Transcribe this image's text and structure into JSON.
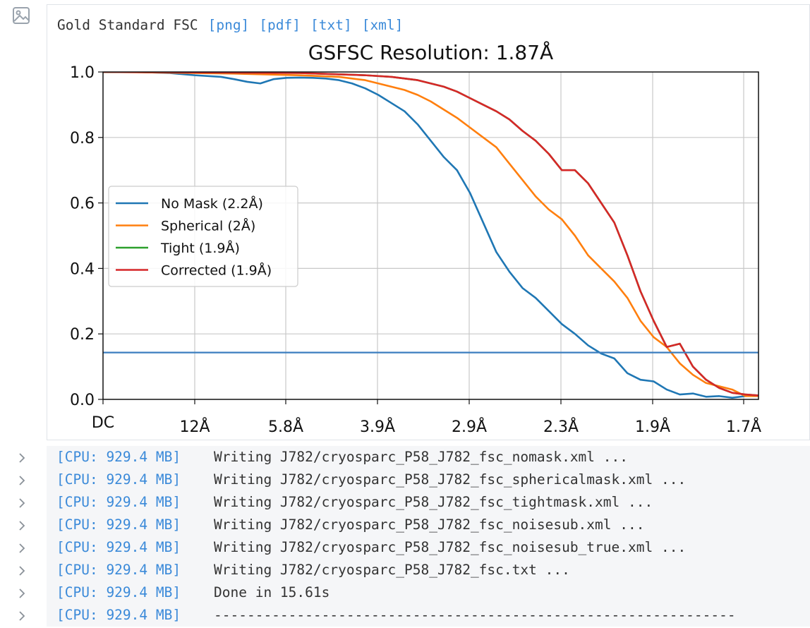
{
  "header": {
    "title": "Gold Standard FSC",
    "links": [
      "[png]",
      "[pdf]",
      "[txt]",
      "[xml]"
    ]
  },
  "chart_data": {
    "type": "line",
    "title": "GSFSC Resolution: 1.87Å",
    "x_ticks": [
      "DC",
      "12Å",
      "5.8Å",
      "3.9Å",
      "2.9Å",
      "2.3Å",
      "1.9Å",
      "1.7Å"
    ],
    "y_ticks": [
      "0.0",
      "0.2",
      "0.4",
      "0.6",
      "0.8",
      "1.0"
    ],
    "ylim": [
      0,
      1.0
    ],
    "x_unit": "fraction of Nyquist (DC to 1.7Å)",
    "threshold": 0.143,
    "threshold_color": "#3b7ebf",
    "grid": true,
    "legend_position": "center-left",
    "series": [
      {
        "name": "No Mask (2.2Å)",
        "color": "#1f77b4",
        "x": [
          0,
          0.05,
          0.1,
          0.14,
          0.18,
          0.2,
          0.22,
          0.24,
          0.26,
          0.28,
          0.3,
          0.32,
          0.34,
          0.36,
          0.38,
          0.4,
          0.42,
          0.44,
          0.46,
          0.48,
          0.5,
          0.52,
          0.54,
          0.56,
          0.58,
          0.6,
          0.62,
          0.64,
          0.66,
          0.68,
          0.7,
          0.72,
          0.74,
          0.76,
          0.78,
          0.8,
          0.82,
          0.84,
          0.86,
          0.88,
          0.9,
          0.92,
          0.94,
          0.96,
          0.98,
          1.0
        ],
        "y": [
          1.0,
          1.0,
          0.997,
          0.99,
          0.985,
          0.978,
          0.97,
          0.965,
          0.978,
          0.982,
          0.983,
          0.982,
          0.98,
          0.975,
          0.965,
          0.95,
          0.93,
          0.905,
          0.88,
          0.84,
          0.79,
          0.74,
          0.7,
          0.63,
          0.54,
          0.45,
          0.39,
          0.34,
          0.31,
          0.27,
          0.23,
          0.2,
          0.165,
          0.14,
          0.125,
          0.08,
          0.06,
          0.055,
          0.03,
          0.015,
          0.018,
          0.008,
          0.01,
          0.005,
          0.01,
          0.012
        ]
      },
      {
        "name": "Spherical (2Å)",
        "color": "#ff7f0e",
        "x": [
          0,
          0.1,
          0.2,
          0.3,
          0.36,
          0.4,
          0.42,
          0.44,
          0.46,
          0.48,
          0.5,
          0.52,
          0.54,
          0.56,
          0.58,
          0.6,
          0.62,
          0.64,
          0.66,
          0.68,
          0.7,
          0.72,
          0.74,
          0.76,
          0.78,
          0.8,
          0.82,
          0.84,
          0.86,
          0.88,
          0.9,
          0.92,
          0.94,
          0.96,
          0.98,
          1.0
        ],
        "y": [
          1.0,
          0.998,
          0.995,
          0.99,
          0.985,
          0.975,
          0.965,
          0.955,
          0.945,
          0.93,
          0.91,
          0.885,
          0.86,
          0.83,
          0.8,
          0.77,
          0.72,
          0.67,
          0.62,
          0.58,
          0.55,
          0.5,
          0.44,
          0.4,
          0.36,
          0.31,
          0.24,
          0.19,
          0.16,
          0.11,
          0.075,
          0.05,
          0.04,
          0.03,
          0.01,
          0.01
        ]
      },
      {
        "name": "Tight (1.9Å)",
        "color": "#2ca02c",
        "x": [
          0,
          0.1,
          0.2,
          0.3,
          0.4,
          0.44,
          0.48,
          0.5,
          0.52,
          0.54,
          0.56,
          0.58,
          0.6,
          0.62,
          0.64,
          0.66,
          0.68,
          0.7,
          0.72,
          0.74,
          0.76,
          0.78,
          0.8,
          0.82,
          0.84,
          0.86,
          0.88,
          0.9,
          0.92,
          0.94,
          0.96,
          0.98,
          1.0
        ],
        "y": [
          1.0,
          0.999,
          0.998,
          0.997,
          0.99,
          0.985,
          0.975,
          0.965,
          0.955,
          0.94,
          0.92,
          0.9,
          0.88,
          0.855,
          0.82,
          0.79,
          0.75,
          0.7,
          0.7,
          0.66,
          0.6,
          0.54,
          0.44,
          0.33,
          0.24,
          0.16,
          0.17,
          0.1,
          0.06,
          0.035,
          0.02,
          0.015,
          0.012
        ]
      },
      {
        "name": "Corrected (1.9Å)",
        "color": "#d62728",
        "x": [
          0,
          0.1,
          0.2,
          0.3,
          0.4,
          0.44,
          0.48,
          0.5,
          0.52,
          0.54,
          0.56,
          0.58,
          0.6,
          0.62,
          0.64,
          0.66,
          0.68,
          0.7,
          0.72,
          0.74,
          0.76,
          0.78,
          0.8,
          0.82,
          0.84,
          0.86,
          0.88,
          0.9,
          0.92,
          0.94,
          0.96,
          0.98,
          1.0
        ],
        "y": [
          1.0,
          0.999,
          0.998,
          0.997,
          0.99,
          0.985,
          0.975,
          0.965,
          0.955,
          0.94,
          0.92,
          0.9,
          0.88,
          0.855,
          0.82,
          0.79,
          0.75,
          0.7,
          0.7,
          0.66,
          0.6,
          0.54,
          0.44,
          0.33,
          0.24,
          0.16,
          0.17,
          0.1,
          0.06,
          0.035,
          0.02,
          0.015,
          0.012
        ]
      }
    ]
  },
  "log": {
    "lines": [
      {
        "cpu": "[CPU: 929.4 MB]",
        "msg": "Writing J782/cryosparc_P58_J782_fsc_nomask.xml ..."
      },
      {
        "cpu": "[CPU: 929.4 MB]",
        "msg": "Writing J782/cryosparc_P58_J782_fsc_sphericalmask.xml ..."
      },
      {
        "cpu": "[CPU: 929.4 MB]",
        "msg": "Writing J782/cryosparc_P58_J782_fsc_tightmask.xml ..."
      },
      {
        "cpu": "[CPU: 929.4 MB]",
        "msg": "Writing J782/cryosparc_P58_J782_fsc_noisesub.xml ..."
      },
      {
        "cpu": "[CPU: 929.4 MB]",
        "msg": "Writing J782/cryosparc_P58_J782_fsc_noisesub_true.xml ..."
      },
      {
        "cpu": "[CPU: 929.4 MB]",
        "msg": "Writing J782/cryosparc_P58_J782_fsc.txt ..."
      },
      {
        "cpu": "[CPU: 929.4 MB]",
        "msg": "Done in 15.61s"
      },
      {
        "cpu": "[CPU: 929.4 MB]",
        "msg": "---------------------------------------------------------------"
      }
    ]
  }
}
